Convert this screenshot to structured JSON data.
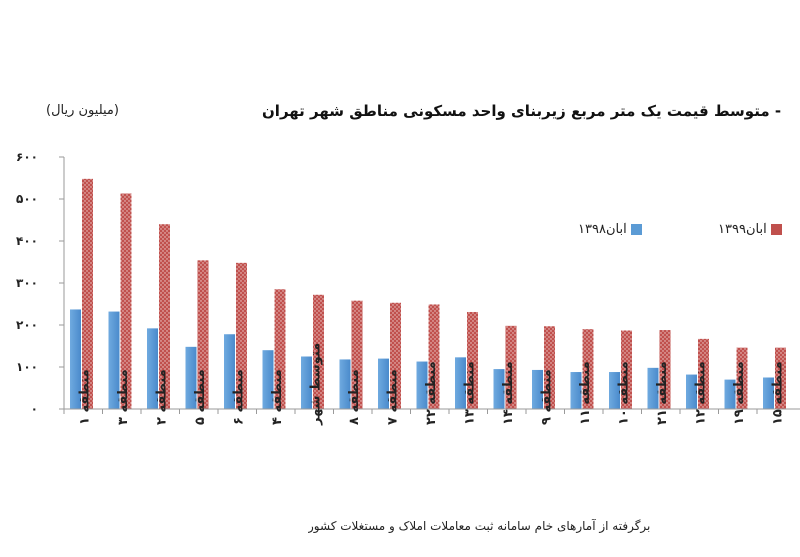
{
  "title": "- متوسط قیمت یک متر مربع زیربنای واحد مسکونی مناطق شهر تهران",
  "unit": "(میلیون ریال)",
  "source": "برگرفته از آمارهای خام سامانه ثبت معاملات املاک و مستغلات کشور",
  "colors": {
    "series1": "#5b9bd5",
    "series2": "#c0504d",
    "axis": "#9a9a9a"
  },
  "chart_data": {
    "type": "bar",
    "ylim": [
      0,
      600
    ],
    "yticks": [
      "۰",
      "۱۰۰",
      "۲۰۰",
      "۳۰۰",
      "۴۰۰",
      "۵۰۰",
      "۶۰۰"
    ],
    "categories": [
      "منطقه ۱",
      "منطقه ۳",
      "منطقه ۲",
      "منطقه ۵",
      "منطقه ۶",
      "منطقه ۴",
      "متوسط شهر",
      "منطقه ۸",
      "منطقه ۷",
      "منطقه ۲۲",
      "منطقه ۱۳",
      "منطقه ۱۴",
      "منطقه ۹",
      "منطقه ۱۱",
      "منطقه ۱۰",
      "منطقه ۲۱",
      "منطقه ۱۲",
      "منطقه ۱۹",
      "منطقه ۱۵"
    ],
    "series": [
      {
        "name": "آبان۱۳۹۸",
        "values": [
          237,
          232,
          192,
          148,
          178,
          140,
          125,
          118,
          120,
          113,
          123,
          95,
          93,
          88,
          88,
          98,
          82,
          70,
          75
        ]
      },
      {
        "name": "آبان۱۳۹۹",
        "values": [
          548,
          513,
          440,
          354,
          348,
          285,
          272,
          258,
          253,
          249,
          231,
          198,
          197,
          190,
          187,
          188,
          167,
          146,
          146
        ]
      }
    ],
    "legend": "top-right",
    "grid": false
  }
}
